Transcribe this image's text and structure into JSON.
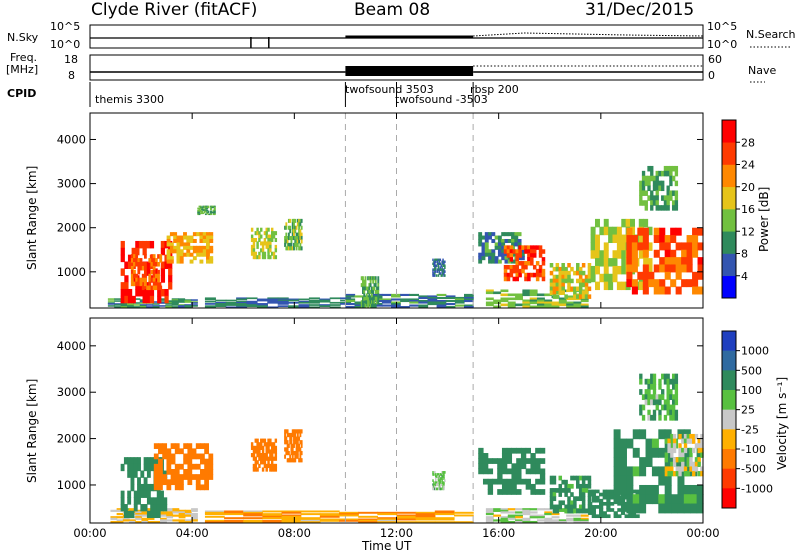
{
  "header": {
    "site": "Clyde River (fitACF)",
    "beam": "Beam 08",
    "date": "31/Dec/2015"
  },
  "noise_panel": {
    "left_label": "N.Sky",
    "right_label": "N.Search",
    "tick_top": "10^5",
    "tick_bottom": "10^0"
  },
  "freq_panel": {
    "left_label_line1": "Freq.",
    "left_label_line2": "[MHz]",
    "right_label": "Nave",
    "left_ticks": [
      "18",
      "8"
    ],
    "right_ticks": [
      "60",
      "0"
    ]
  },
  "cpid_panel": {
    "label": "CPID",
    "segments": [
      {
        "name": "themis 3300",
        "start": 0.0
      },
      {
        "name": "twofsound 3503",
        "start": 10.0
      },
      {
        "name": "twofsound -3503",
        "start": 12.0
      },
      {
        "name": "rbsp 200",
        "start": 15.0
      }
    ]
  },
  "chart_data": [
    {
      "type": "heatmap",
      "quantity": "power",
      "ylabel": "Slant Range [km]",
      "yticks": [
        1000,
        2000,
        3000,
        4000
      ],
      "ylim": [
        180,
        4600
      ],
      "xlim": [
        0,
        24
      ],
      "colorbar": {
        "label": "Power [dB]",
        "ticks": [
          "4",
          "8",
          "12",
          "16",
          "20",
          "24",
          "28"
        ],
        "colors": [
          "#0000ff",
          "#3355b0",
          "#2f8a5c",
          "#72c040",
          "#e6c41a",
          "#ff8800",
          "#ff3a00",
          "#ff0000"
        ]
      },
      "echoes": [
        {
          "t0": 0.7,
          "t1": 4.2,
          "r0": 200,
          "r1": 400,
          "v": 10
        },
        {
          "t0": 1.2,
          "t1": 3.2,
          "r0": 300,
          "r1": 1700,
          "v": 29
        },
        {
          "t0": 1.6,
          "t1": 2.8,
          "r0": 600,
          "r1": 1400,
          "v": 24
        },
        {
          "t0": 3.0,
          "t1": 4.8,
          "r0": 1200,
          "r1": 1900,
          "v": 20
        },
        {
          "t0": 4.2,
          "t1": 4.9,
          "r0": 2300,
          "r1": 2500,
          "v": 12
        },
        {
          "t0": 6.3,
          "t1": 7.3,
          "r0": 1300,
          "r1": 2000,
          "v": 16
        },
        {
          "t0": 7.6,
          "t1": 8.3,
          "r0": 1500,
          "r1": 2200,
          "v": 14
        },
        {
          "t0": 4.5,
          "t1": 10.2,
          "r0": 190,
          "r1": 420,
          "v": 8
        },
        {
          "t0": 10.0,
          "t1": 15.0,
          "r0": 190,
          "r1": 500,
          "v": 9
        },
        {
          "t0": 10.6,
          "t1": 11.3,
          "r0": 200,
          "r1": 900,
          "v": 12
        },
        {
          "t0": 13.4,
          "t1": 13.9,
          "r0": 900,
          "r1": 1300,
          "v": 8
        },
        {
          "t0": 15.2,
          "t1": 17.0,
          "r0": 1200,
          "r1": 1900,
          "v": 10
        },
        {
          "t0": 16.2,
          "t1": 17.8,
          "r0": 800,
          "r1": 1600,
          "v": 26
        },
        {
          "t0": 15.5,
          "t1": 19.5,
          "r0": 190,
          "r1": 600,
          "v": 14
        },
        {
          "t0": 18.0,
          "t1": 19.6,
          "r0": 400,
          "r1": 1200,
          "v": 18
        },
        {
          "t0": 19.6,
          "t1": 22.0,
          "r0": 600,
          "r1": 2200,
          "v": 16
        },
        {
          "t0": 21.0,
          "t1": 24.0,
          "r0": 500,
          "r1": 2000,
          "v": 25
        },
        {
          "t0": 21.5,
          "t1": 23.0,
          "r0": 2400,
          "r1": 3400,
          "v": 12
        }
      ]
    },
    {
      "type": "heatmap",
      "quantity": "velocity",
      "xlabel": "Time UT",
      "ylabel": "Slant Range [km]",
      "xticks": [
        "00:00",
        "04:00",
        "08:00",
        "12:00",
        "16:00",
        "20:00",
        "00:00"
      ],
      "yticks": [
        1000,
        2000,
        3000,
        4000
      ],
      "ylim": [
        180,
        4600
      ],
      "xlim": [
        0,
        24
      ],
      "colorbar": {
        "label": "Velocity [m s⁻¹]",
        "ticks": [
          "1000",
          "500",
          "100",
          "25",
          "-25",
          "-100",
          "-500",
          "-1000"
        ],
        "colors": [
          "#1f3fbf",
          "#2f6aa0",
          "#2f8a5c",
          "#58c040",
          "#c8c8c8",
          "#ffb000",
          "#ff7a00",
          "#ff3a00",
          "#ff0000"
        ]
      },
      "echoes": [
        {
          "t0": 0.8,
          "t1": 4.2,
          "r0": 190,
          "r1": 500,
          "v": -30
        },
        {
          "t0": 1.2,
          "t1": 3.0,
          "r0": 300,
          "r1": 1600,
          "v": 300
        },
        {
          "t0": 2.5,
          "t1": 4.8,
          "r0": 900,
          "r1": 1900,
          "v": -200
        },
        {
          "t0": 6.3,
          "t1": 7.3,
          "r0": 1300,
          "r1": 2000,
          "v": -300
        },
        {
          "t0": 7.6,
          "t1": 8.3,
          "r0": 1500,
          "r1": 2200,
          "v": -250
        },
        {
          "t0": 4.5,
          "t1": 15.0,
          "r0": 190,
          "r1": 450,
          "v": -80
        },
        {
          "t0": 13.4,
          "t1": 13.9,
          "r0": 900,
          "r1": 1300,
          "v": 50
        },
        {
          "t0": 15.2,
          "t1": 17.8,
          "r0": 800,
          "r1": 1800,
          "v": 400
        },
        {
          "t0": 15.5,
          "t1": 19.5,
          "r0": 190,
          "r1": 500,
          "v": 20
        },
        {
          "t0": 18.0,
          "t1": 19.6,
          "r0": 400,
          "r1": 1200,
          "v": 150
        },
        {
          "t0": 19.5,
          "t1": 21.5,
          "r0": 300,
          "r1": 900,
          "v": 200
        },
        {
          "t0": 20.5,
          "t1": 24.0,
          "r0": 400,
          "r1": 2200,
          "v": 150
        },
        {
          "t0": 22.5,
          "t1": 24.0,
          "r0": 1200,
          "r1": 2100,
          "v": 0
        },
        {
          "t0": 21.5,
          "t1": 23.0,
          "r0": 2400,
          "r1": 3400,
          "v": 80
        }
      ]
    }
  ]
}
